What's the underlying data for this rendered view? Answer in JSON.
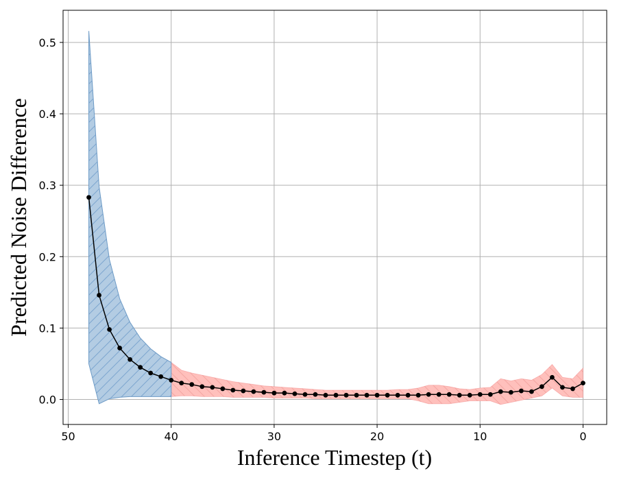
{
  "chart_data": {
    "type": "line",
    "title": "",
    "xlabel": "Inference Timestep (t)",
    "ylabel": "Predicted Noise Difference",
    "xlim": [
      50.5,
      -2.3
    ],
    "ylim": [
      -0.035,
      0.545
    ],
    "xticks": [
      50,
      40,
      30,
      20,
      10,
      0
    ],
    "yticks": [
      0.0,
      0.1,
      0.2,
      0.3,
      0.4,
      0.5
    ],
    "xtick_labels": [
      "50",
      "40",
      "30",
      "20",
      "10",
      "0"
    ],
    "ytick_labels": [
      "0.0",
      "0.1",
      "0.2",
      "0.3",
      "0.4",
      "0.5"
    ],
    "grid": true,
    "legend": "none",
    "colors": {
      "line": "#000000",
      "band_early": "#6c9ac6",
      "band_early_fill": "#b3cce3",
      "band_late": "#f08080",
      "band_late_fill": "#ffc0bc",
      "grid": "#b0b0b0"
    },
    "band_split_t": 40,
    "series": [
      {
        "x": [
          48,
          47,
          46,
          45,
          44,
          43,
          42,
          41,
          40,
          39,
          38,
          37,
          36,
          35,
          34,
          33,
          32,
          31,
          30,
          29,
          28,
          27,
          26,
          25,
          24,
          23,
          22,
          21,
          20,
          19,
          18,
          17,
          16,
          15,
          14,
          13,
          12,
          11,
          10,
          9,
          8,
          7,
          6,
          5,
          4,
          3,
          2,
          1,
          0
        ],
        "values": [
          0.283,
          0.146,
          0.098,
          0.072,
          0.056,
          0.045,
          0.037,
          0.032,
          0.027,
          0.023,
          0.021,
          0.018,
          0.017,
          0.015,
          0.013,
          0.012,
          0.011,
          0.01,
          0.009,
          0.009,
          0.008,
          0.007,
          0.007,
          0.006,
          0.006,
          0.006,
          0.006,
          0.006,
          0.006,
          0.006,
          0.006,
          0.006,
          0.006,
          0.007,
          0.007,
          0.007,
          0.006,
          0.006,
          0.007,
          0.007,
          0.011,
          0.01,
          0.012,
          0.011,
          0.018,
          0.031,
          0.017,
          0.015,
          0.023
        ],
        "lower": [
          0.05,
          -0.006,
          0.001,
          0.003,
          0.004,
          0.004,
          0.004,
          0.004,
          0.004,
          0.005,
          0.005,
          0.004,
          0.004,
          0.004,
          0.003,
          0.003,
          0.003,
          0.003,
          0.002,
          0.002,
          0.002,
          0.002,
          0.001,
          0.001,
          0.001,
          0.001,
          0.001,
          0.001,
          0.001,
          0.001,
          0.001,
          0.001,
          -0.002,
          -0.006,
          -0.006,
          -0.006,
          -0.004,
          -0.002,
          -0.002,
          -0.002,
          -0.007,
          -0.004,
          -0.001,
          0.002,
          0.005,
          0.016,
          0.005,
          0.003,
          0.003
        ],
        "upper": [
          0.516,
          0.298,
          0.196,
          0.141,
          0.108,
          0.086,
          0.071,
          0.06,
          0.052,
          0.041,
          0.037,
          0.034,
          0.031,
          0.028,
          0.025,
          0.023,
          0.021,
          0.019,
          0.018,
          0.017,
          0.016,
          0.015,
          0.014,
          0.013,
          0.013,
          0.013,
          0.013,
          0.013,
          0.013,
          0.013,
          0.014,
          0.014,
          0.016,
          0.02,
          0.02,
          0.018,
          0.015,
          0.014,
          0.016,
          0.017,
          0.029,
          0.026,
          0.029,
          0.027,
          0.035,
          0.049,
          0.031,
          0.029,
          0.044
        ]
      }
    ]
  }
}
